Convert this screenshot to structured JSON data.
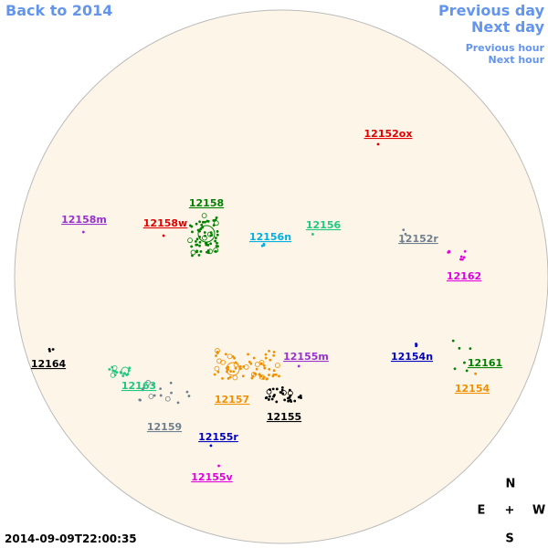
{
  "nav": {
    "back": "Back to 2014",
    "previous_day": "Previous day",
    "next_day": "Next day",
    "previous_hour": "Previous hour",
    "next_hour": "Next hour"
  },
  "regions": [
    {
      "label": "12152ox",
      "color": "#e00000"
    },
    {
      "label": "12158",
      "color": "#008000"
    },
    {
      "label": "12158m",
      "color": "#9932cc"
    },
    {
      "label": "12158w",
      "color": "#e00000"
    },
    {
      "label": "12156n",
      "color": "#00b0e0"
    },
    {
      "label": "12156",
      "color": "#20c880"
    },
    {
      "label": "12152r",
      "color": "#708090"
    },
    {
      "label": "12162",
      "color": "#e000e0"
    },
    {
      "label": "12155m",
      "color": "#9932cc"
    },
    {
      "label": "12154n",
      "color": "#0000c0"
    },
    {
      "label": "12161",
      "color": "#008000"
    },
    {
      "label": "12164",
      "color": "#000000"
    },
    {
      "label": "12163",
      "color": "#20c880"
    },
    {
      "label": "12154",
      "color": "#f09000"
    },
    {
      "label": "12157",
      "color": "#f09000"
    },
    {
      "label": "12155",
      "color": "#000000"
    },
    {
      "label": "12159",
      "color": "#708090"
    },
    {
      "label": "12155r",
      "color": "#0000c0"
    },
    {
      "label": "12155v",
      "color": "#e000e0"
    }
  ],
  "compass": {
    "north": "N",
    "east": "E",
    "center": "+",
    "west": "W",
    "south": "S"
  },
  "timestamp": "2014-09-09T22:00:35"
}
